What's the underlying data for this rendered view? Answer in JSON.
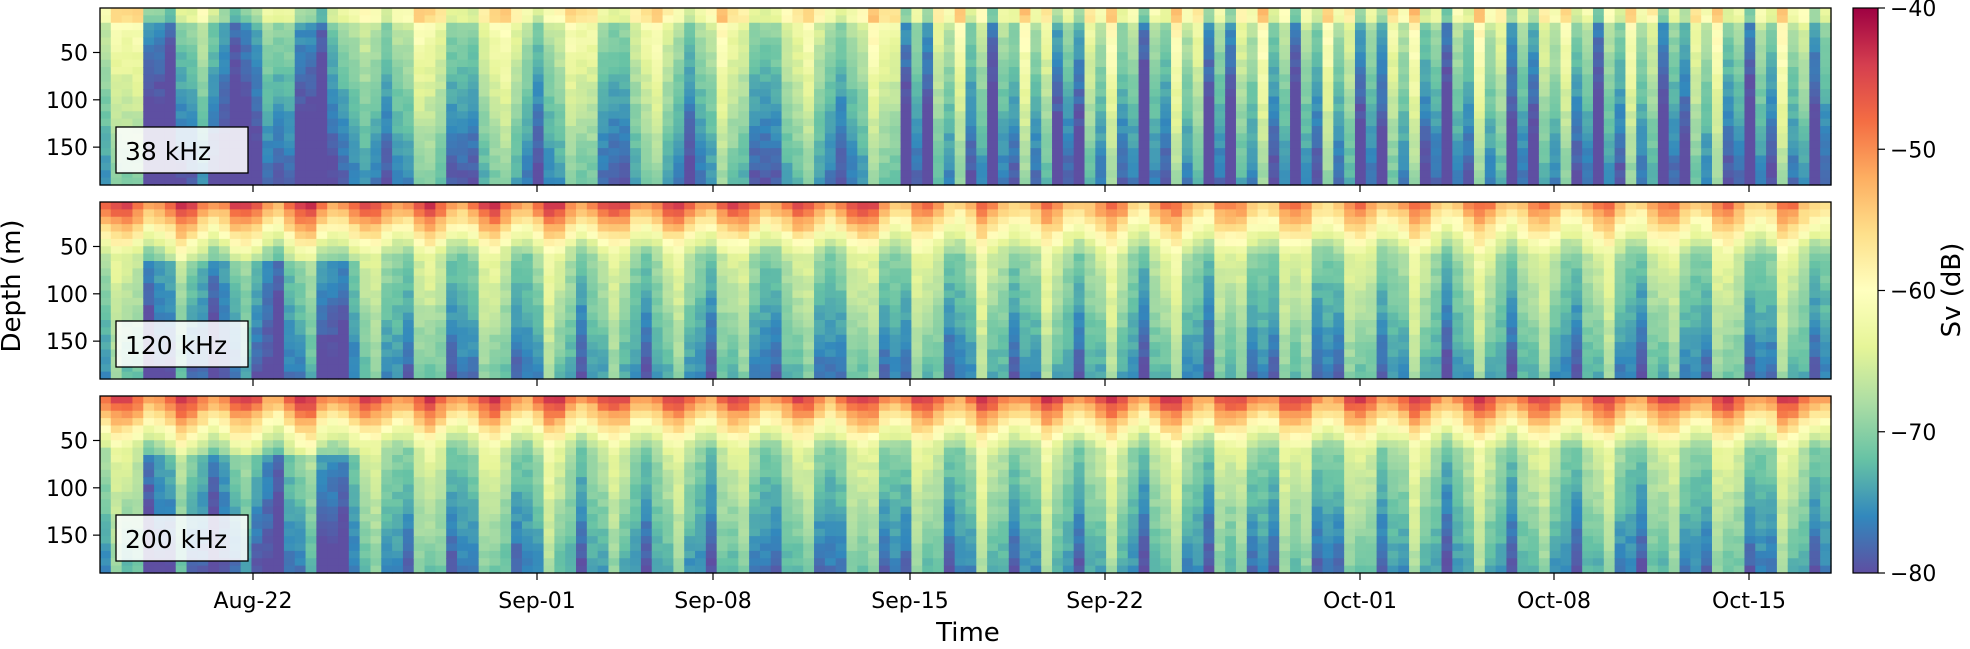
{
  "chart_data": {
    "type": "heatmap",
    "xlabel": "Time",
    "ylabel": "Depth (m)",
    "x_ticks": [
      "Aug-22",
      "Sep-01",
      "Sep-08",
      "Sep-15",
      "Sep-22",
      "Oct-01",
      "Oct-08",
      "Oct-15"
    ],
    "y_ticks": [
      50,
      100,
      150
    ],
    "ylim": [
      190,
      3
    ],
    "panels": [
      {
        "label": "38 kHz"
      },
      {
        "label": "120 kHz"
      },
      {
        "label": "200 kHz"
      }
    ],
    "colorbar": {
      "label": "Sv (dB)",
      "range": [
        -80,
        -40
      ],
      "ticks": [
        "−80",
        "−70",
        "−60",
        "−50",
        "−40"
      ],
      "colormap": "Spectral_r"
    },
    "grid": false
  }
}
